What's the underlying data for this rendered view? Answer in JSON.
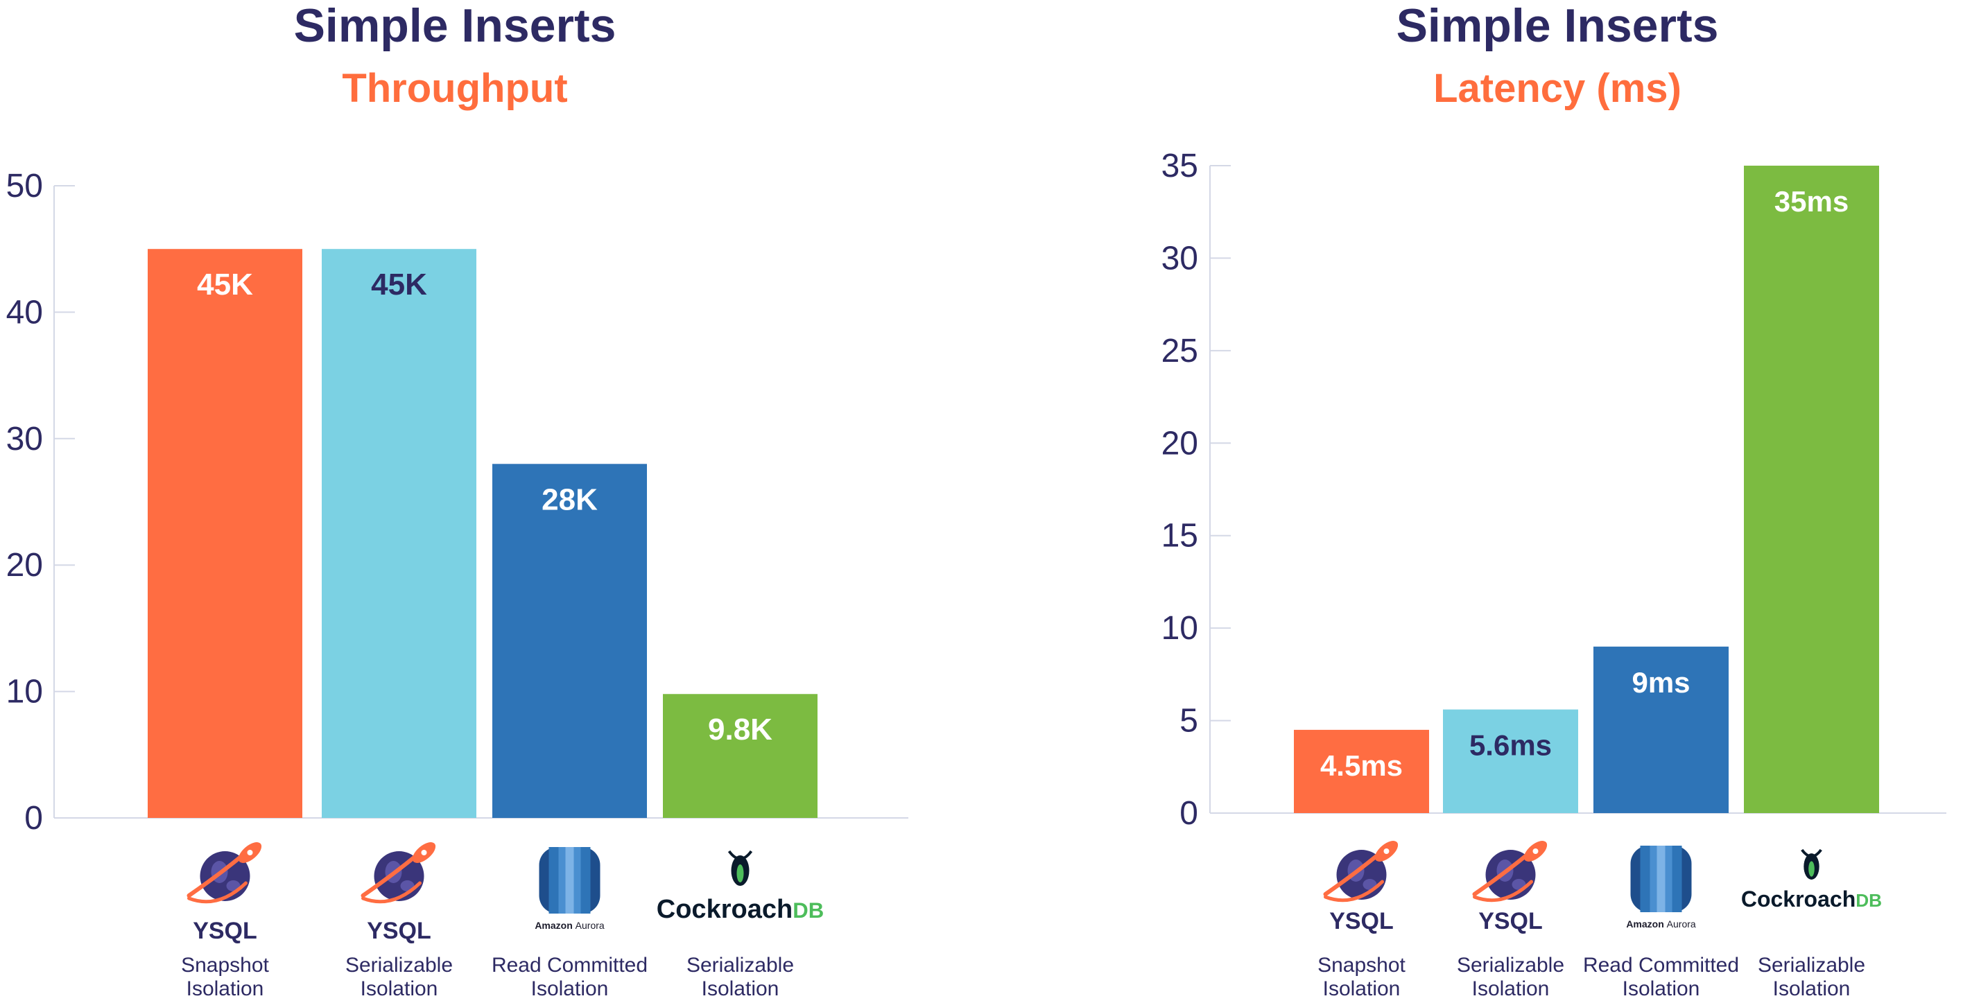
{
  "colors": {
    "title": "#2d2a63",
    "subtitle": "#ff6d3d",
    "axis": "#d4d8e6",
    "bar_text_light": "#ffffff",
    "bar_text_dark": "#2d2a63"
  },
  "chart_data": [
    {
      "type": "bar",
      "title": "Simple Inserts",
      "subtitle": "Throughput",
      "ylim": [
        0,
        50
      ],
      "yticks": [
        0,
        10,
        20,
        30,
        40,
        50
      ],
      "grid": false,
      "categories": [
        {
          "logo": "yugabyte-icon",
          "name": "YSQL",
          "sub": [
            "Snapshot",
            "Isolation"
          ]
        },
        {
          "logo": "yugabyte-icon",
          "name": "YSQL",
          "sub": [
            "Serializable",
            "Isolation"
          ]
        },
        {
          "logo": "amazon-aurora-icon",
          "logo_text": "Amazon Aurora",
          "sub": [
            "Read Committed",
            "Isolation"
          ]
        },
        {
          "logo": "cockroachdb-icon",
          "logo_text_a": "Cockroach",
          "logo_text_b": "DB",
          "sub": [
            "Serializable",
            "Isolation"
          ]
        }
      ],
      "values": [
        45,
        45,
        28,
        9.8
      ],
      "value_labels": [
        "45K",
        "45K",
        "28K",
        "9.8K"
      ],
      "bar_colors": [
        "#ff6d42",
        "#7bd1e3",
        "#2e74b7",
        "#7cbb41"
      ],
      "label_colors": [
        "#ffffff",
        "#2d2a63",
        "#ffffff",
        "#ffffff"
      ]
    },
    {
      "type": "bar",
      "title": "Simple Inserts",
      "subtitle": "Latency (ms)",
      "ylim": [
        0,
        35
      ],
      "yticks": [
        0,
        5,
        10,
        15,
        20,
        25,
        30,
        35
      ],
      "grid": false,
      "categories": [
        {
          "logo": "yugabyte-icon",
          "name": "YSQL",
          "sub": [
            "Snapshot",
            "Isolation"
          ]
        },
        {
          "logo": "yugabyte-icon",
          "name": "YSQL",
          "sub": [
            "Serializable",
            "Isolation"
          ]
        },
        {
          "logo": "amazon-aurora-icon",
          "logo_text": "Amazon Aurora",
          "sub": [
            "Read Committed",
            "Isolation"
          ]
        },
        {
          "logo": "cockroachdb-icon",
          "logo_text_a": "Cockroach",
          "logo_text_b": "DB",
          "sub": [
            "Serializable",
            "Isolation"
          ]
        }
      ],
      "values": [
        4.5,
        5.6,
        9,
        35
      ],
      "value_labels": [
        "4.5ms",
        "5.6ms",
        "9ms",
        "35ms"
      ],
      "bar_colors": [
        "#ff6d42",
        "#7bd1e3",
        "#2e74b7",
        "#7cbb41"
      ],
      "label_colors": [
        "#ffffff",
        "#2d2a63",
        "#ffffff",
        "#ffffff"
      ]
    }
  ]
}
